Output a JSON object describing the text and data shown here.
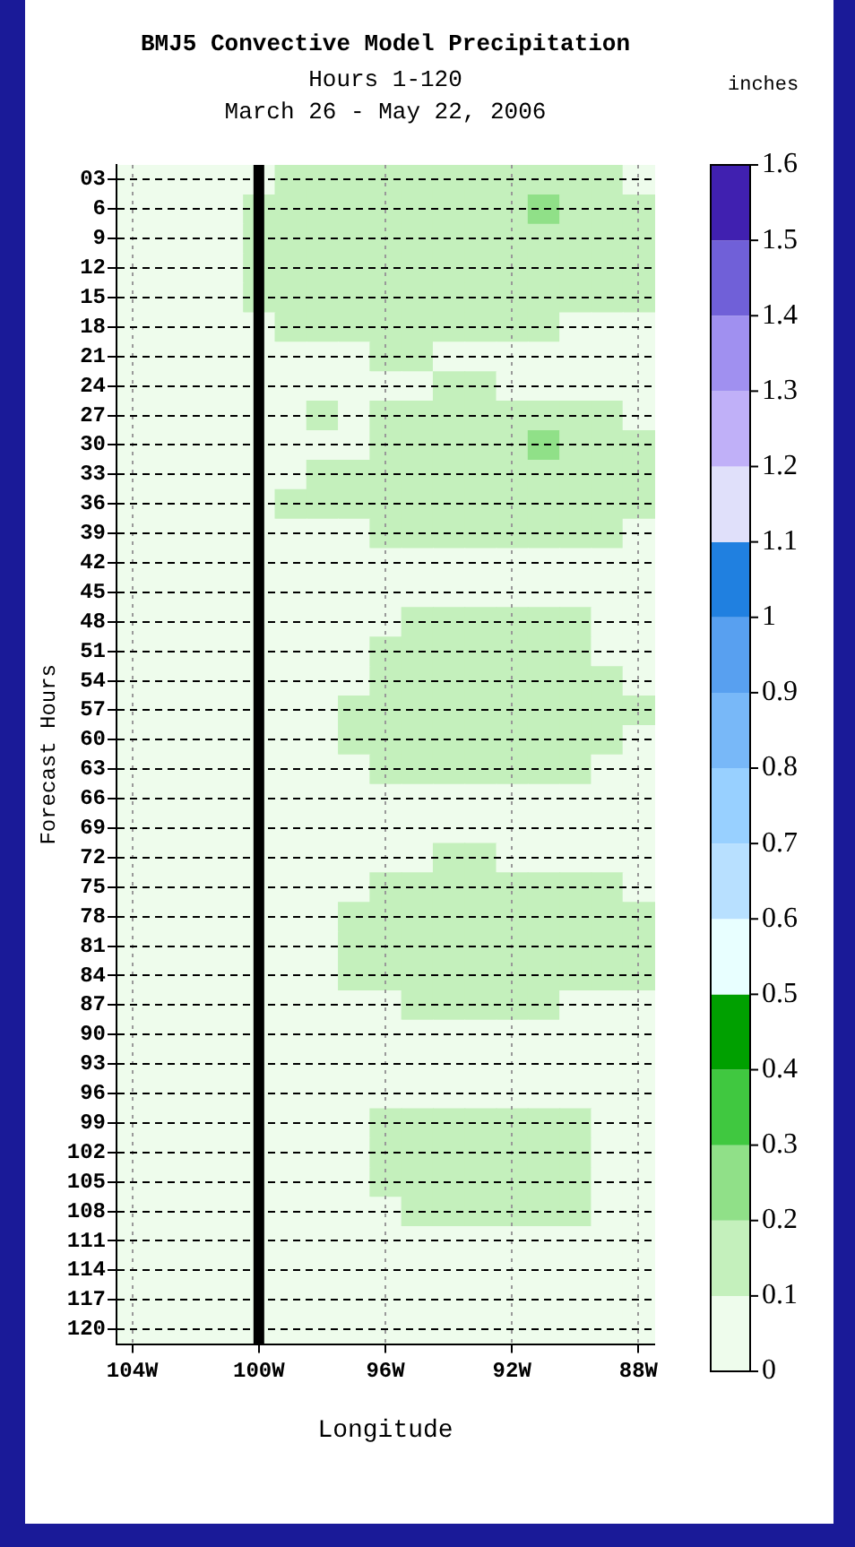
{
  "chart_data": {
    "type": "heatmap",
    "title": "BMJ5 Convective Model Precipitation",
    "subtitle": "Hours 1-120\nMarch 26 - May 22, 2006",
    "xlabel": "Longitude",
    "ylabel": "Forecast Hours",
    "clabel": "inches",
    "categories": [
      "104W",
      null,
      null,
      null,
      "100W",
      null,
      null,
      null,
      "96W",
      null,
      null,
      null,
      "92W",
      null,
      null,
      null,
      "88W"
    ],
    "y_categories": [
      "03",
      "6",
      "9",
      "12",
      "15",
      "18",
      "21",
      "24",
      "27",
      "30",
      "33",
      "36",
      "39",
      "42",
      "45",
      "48",
      "51",
      "54",
      "57",
      "60",
      "63",
      "66",
      "69",
      "72",
      "75",
      "78",
      "81",
      "84",
      "87",
      "90",
      "93",
      "96",
      "99",
      "102",
      "105",
      "108",
      "111",
      "114",
      "117",
      "120"
    ],
    "cells": [
      [
        0.05,
        0.05,
        0.05,
        0.05,
        0.05,
        0.15,
        0.15,
        0.15,
        0.15,
        0.15,
        0.15,
        0.15,
        0.15,
        0.15,
        0.15,
        0.15,
        0.05
      ],
      [
        0.05,
        0.05,
        0.05,
        0.05,
        0.15,
        0.15,
        0.15,
        0.15,
        0.15,
        0.15,
        0.15,
        0.15,
        0.15,
        0.25,
        0.15,
        0.15,
        0.15
      ],
      [
        0.05,
        0.05,
        0.05,
        0.05,
        0.15,
        0.15,
        0.15,
        0.15,
        0.15,
        0.15,
        0.15,
        0.15,
        0.15,
        0.15,
        0.15,
        0.15,
        0.15
      ],
      [
        0.05,
        0.05,
        0.05,
        0.05,
        0.15,
        0.15,
        0.15,
        0.15,
        0.15,
        0.15,
        0.15,
        0.15,
        0.15,
        0.15,
        0.15,
        0.15,
        0.15
      ],
      [
        0.05,
        0.05,
        0.05,
        0.05,
        0.15,
        0.15,
        0.15,
        0.15,
        0.15,
        0.15,
        0.15,
        0.15,
        0.15,
        0.15,
        0.15,
        0.15,
        0.15
      ],
      [
        0.05,
        0.05,
        0.05,
        0.05,
        0.05,
        0.15,
        0.15,
        0.15,
        0.15,
        0.15,
        0.15,
        0.15,
        0.15,
        0.15,
        0.05,
        0.05,
        0.05
      ],
      [
        0.05,
        0.05,
        0.05,
        0.05,
        0.05,
        0.05,
        0.05,
        0.05,
        0.15,
        0.15,
        0.05,
        0.05,
        0.05,
        0.05,
        0.05,
        0.05,
        0.05
      ],
      [
        0.05,
        0.05,
        0.05,
        0.05,
        0.05,
        0.05,
        0.05,
        0.05,
        0.05,
        0.05,
        0.15,
        0.15,
        0.05,
        0.05,
        0.05,
        0.05,
        0.05
      ],
      [
        0.05,
        0.05,
        0.05,
        0.05,
        0.05,
        0.05,
        0.15,
        0.05,
        0.15,
        0.15,
        0.15,
        0.15,
        0.15,
        0.15,
        0.15,
        0.15,
        0.05
      ],
      [
        0.05,
        0.05,
        0.05,
        0.05,
        0.05,
        0.05,
        0.05,
        0.05,
        0.15,
        0.15,
        0.15,
        0.15,
        0.15,
        0.25,
        0.15,
        0.15,
        0.15
      ],
      [
        0.05,
        0.05,
        0.05,
        0.05,
        0.05,
        0.05,
        0.15,
        0.15,
        0.15,
        0.15,
        0.15,
        0.15,
        0.15,
        0.15,
        0.15,
        0.15,
        0.15
      ],
      [
        0.05,
        0.05,
        0.05,
        0.05,
        0.05,
        0.15,
        0.15,
        0.15,
        0.15,
        0.15,
        0.15,
        0.15,
        0.15,
        0.15,
        0.15,
        0.15,
        0.15
      ],
      [
        0.05,
        0.05,
        0.05,
        0.05,
        0.05,
        0.05,
        0.05,
        0.05,
        0.15,
        0.15,
        0.15,
        0.15,
        0.15,
        0.15,
        0.15,
        0.15,
        0.05
      ],
      [
        0.05,
        0.05,
        0.05,
        0.05,
        0.05,
        0.05,
        0.05,
        0.05,
        0.05,
        0.05,
        0.05,
        0.05,
        0.05,
        0.05,
        0.05,
        0.05,
        0.05
      ],
      [
        0.05,
        0.05,
        0.05,
        0.05,
        0.05,
        0.05,
        0.05,
        0.05,
        0.05,
        0.05,
        0.05,
        0.05,
        0.05,
        0.05,
        0.05,
        0.05,
        0.05
      ],
      [
        0.05,
        0.05,
        0.05,
        0.05,
        0.05,
        0.05,
        0.05,
        0.05,
        0.05,
        0.15,
        0.15,
        0.15,
        0.15,
        0.15,
        0.15,
        0.05,
        0.05
      ],
      [
        0.05,
        0.05,
        0.05,
        0.05,
        0.05,
        0.05,
        0.05,
        0.05,
        0.15,
        0.15,
        0.15,
        0.15,
        0.15,
        0.15,
        0.15,
        0.05,
        0.05
      ],
      [
        0.05,
        0.05,
        0.05,
        0.05,
        0.05,
        0.05,
        0.05,
        0.05,
        0.15,
        0.15,
        0.15,
        0.15,
        0.15,
        0.15,
        0.15,
        0.15,
        0.05
      ],
      [
        0.05,
        0.05,
        0.05,
        0.05,
        0.05,
        0.05,
        0.05,
        0.15,
        0.15,
        0.15,
        0.15,
        0.15,
        0.15,
        0.15,
        0.15,
        0.15,
        0.15
      ],
      [
        0.05,
        0.05,
        0.05,
        0.05,
        0.05,
        0.05,
        0.05,
        0.15,
        0.15,
        0.15,
        0.15,
        0.15,
        0.15,
        0.15,
        0.15,
        0.15,
        0.05
      ],
      [
        0.05,
        0.05,
        0.05,
        0.05,
        0.05,
        0.05,
        0.05,
        0.05,
        0.15,
        0.15,
        0.15,
        0.15,
        0.15,
        0.15,
        0.15,
        0.05,
        0.05
      ],
      [
        0.05,
        0.05,
        0.05,
        0.05,
        0.05,
        0.05,
        0.05,
        0.05,
        0.05,
        0.05,
        0.05,
        0.05,
        0.05,
        0.05,
        0.05,
        0.05,
        0.05
      ],
      [
        0.05,
        0.05,
        0.05,
        0.05,
        0.05,
        0.05,
        0.05,
        0.05,
        0.05,
        0.05,
        0.05,
        0.05,
        0.05,
        0.05,
        0.05,
        0.05,
        0.05
      ],
      [
        0.05,
        0.05,
        0.05,
        0.05,
        0.05,
        0.05,
        0.05,
        0.05,
        0.05,
        0.05,
        0.15,
        0.15,
        0.05,
        0.05,
        0.05,
        0.05,
        0.05
      ],
      [
        0.05,
        0.05,
        0.05,
        0.05,
        0.05,
        0.05,
        0.05,
        0.05,
        0.15,
        0.15,
        0.15,
        0.15,
        0.15,
        0.15,
        0.15,
        0.15,
        0.05
      ],
      [
        0.05,
        0.05,
        0.05,
        0.05,
        0.05,
        0.05,
        0.05,
        0.15,
        0.15,
        0.15,
        0.15,
        0.15,
        0.15,
        0.15,
        0.15,
        0.15,
        0.15
      ],
      [
        0.05,
        0.05,
        0.05,
        0.05,
        0.05,
        0.05,
        0.05,
        0.15,
        0.15,
        0.15,
        0.15,
        0.15,
        0.15,
        0.15,
        0.15,
        0.15,
        0.15
      ],
      [
        0.05,
        0.05,
        0.05,
        0.05,
        0.05,
        0.05,
        0.05,
        0.15,
        0.15,
        0.15,
        0.15,
        0.15,
        0.15,
        0.15,
        0.15,
        0.15,
        0.15
      ],
      [
        0.05,
        0.05,
        0.05,
        0.05,
        0.05,
        0.05,
        0.05,
        0.05,
        0.05,
        0.15,
        0.15,
        0.15,
        0.15,
        0.15,
        0.05,
        0.05,
        0.05
      ],
      [
        0.05,
        0.05,
        0.05,
        0.05,
        0.05,
        0.05,
        0.05,
        0.05,
        0.05,
        0.05,
        0.05,
        0.05,
        0.05,
        0.05,
        0.05,
        0.05,
        0.05
      ],
      [
        0.05,
        0.05,
        0.05,
        0.05,
        0.05,
        0.05,
        0.05,
        0.05,
        0.05,
        0.05,
        0.05,
        0.05,
        0.05,
        0.05,
        0.05,
        0.05,
        0.05
      ],
      [
        0.05,
        0.05,
        0.05,
        0.05,
        0.05,
        0.05,
        0.05,
        0.05,
        0.05,
        0.05,
        0.05,
        0.05,
        0.05,
        0.05,
        0.05,
        0.05,
        0.05
      ],
      [
        0.05,
        0.05,
        0.05,
        0.05,
        0.05,
        0.05,
        0.05,
        0.05,
        0.15,
        0.15,
        0.15,
        0.15,
        0.15,
        0.15,
        0.15,
        0.05,
        0.05
      ],
      [
        0.05,
        0.05,
        0.05,
        0.05,
        0.05,
        0.05,
        0.05,
        0.05,
        0.15,
        0.15,
        0.15,
        0.15,
        0.15,
        0.15,
        0.15,
        0.05,
        0.05
      ],
      [
        0.05,
        0.05,
        0.05,
        0.05,
        0.05,
        0.05,
        0.05,
        0.05,
        0.15,
        0.15,
        0.15,
        0.15,
        0.15,
        0.15,
        0.15,
        0.05,
        0.05
      ],
      [
        0.05,
        0.05,
        0.05,
        0.05,
        0.05,
        0.05,
        0.05,
        0.05,
        0.05,
        0.15,
        0.15,
        0.15,
        0.15,
        0.15,
        0.15,
        0.05,
        0.05
      ],
      [
        0.05,
        0.05,
        0.05,
        0.05,
        0.05,
        0.05,
        0.05,
        0.05,
        0.05,
        0.05,
        0.05,
        0.05,
        0.05,
        0.05,
        0.05,
        0.05,
        0.05
      ],
      [
        0.05,
        0.05,
        0.05,
        0.05,
        0.05,
        0.05,
        0.05,
        0.05,
        0.05,
        0.05,
        0.05,
        0.05,
        0.05,
        0.05,
        0.05,
        0.05,
        0.05
      ],
      [
        0.05,
        0.05,
        0.05,
        0.05,
        0.05,
        0.05,
        0.05,
        0.05,
        0.05,
        0.05,
        0.05,
        0.05,
        0.05,
        0.05,
        0.05,
        0.05,
        0.05
      ],
      [
        0.05,
        0.05,
        0.05,
        0.05,
        0.05,
        0.05,
        0.05,
        0.05,
        0.05,
        0.05,
        0.05,
        0.05,
        0.05,
        0.05,
        0.05,
        0.05,
        0.05
      ]
    ],
    "clim": [
      0,
      1.6
    ],
    "cticks": [
      0,
      0.1,
      0.2,
      0.3,
      0.4,
      0.5,
      0.6,
      0.7,
      0.8,
      0.9,
      1,
      1.1,
      1.2,
      1.3,
      1.4,
      1.5,
      1.6
    ],
    "colors": [
      "#eefcec",
      "#c4f0bc",
      "#90e088",
      "#40c840",
      "#00a000",
      "#e8ffff",
      "#b8e0ff",
      "#98d0ff",
      "#78b8f8",
      "#58a0f0",
      "#2080e0",
      "#e0e0fa",
      "#c0b0f8",
      "#a090f0",
      "#7060d8",
      "#4020b0"
    ],
    "grid": true,
    "ref_lines": [
      {
        "axis": "x",
        "value": "100W",
        "color": "#000000"
      }
    ]
  }
}
